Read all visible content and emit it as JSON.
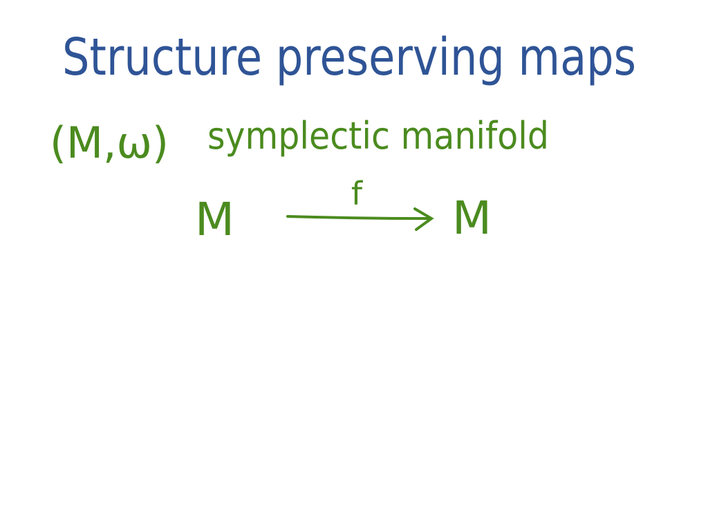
{
  "header": {
    "title": "Structure preserving maps"
  },
  "definition": {
    "pair": "(M,ω)",
    "description": "symplectic manifold"
  },
  "diagram": {
    "source": "M",
    "map_label": "f",
    "target": "M"
  }
}
